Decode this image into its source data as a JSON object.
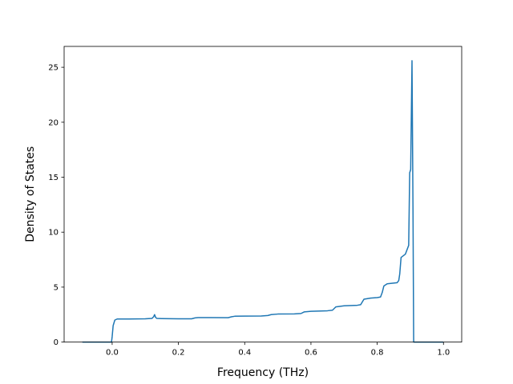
{
  "chart_data": {
    "type": "line",
    "title": "",
    "xlabel": "Frequency (THz)",
    "ylabel": "Density of States",
    "xlim": [
      -0.145,
      1.055
    ],
    "ylim": [
      0,
      26.9
    ],
    "xticks": [
      0.0,
      0.2,
      0.4,
      0.6,
      0.8,
      1.0
    ],
    "xtick_labels": [
      "0.0",
      "0.2",
      "0.4",
      "0.6",
      "0.8",
      "1.0"
    ],
    "yticks": [
      0,
      5,
      10,
      15,
      20,
      25
    ],
    "ytick_labels": [
      "0",
      "5",
      "10",
      "15",
      "20",
      "25"
    ],
    "grid": false,
    "legend": "none",
    "series": [
      {
        "color": "#1f77b4",
        "x": [
          -0.09,
          -0.002,
          0.0,
          0.003,
          0.008,
          0.015,
          0.05,
          0.1,
          0.12,
          0.125,
          0.128,
          0.131,
          0.135,
          0.15,
          0.2,
          0.24,
          0.25,
          0.26,
          0.3,
          0.35,
          0.36,
          0.37,
          0.4,
          0.45,
          0.47,
          0.48,
          0.5,
          0.55,
          0.57,
          0.58,
          0.6,
          0.65,
          0.665,
          0.675,
          0.7,
          0.74,
          0.75,
          0.76,
          0.78,
          0.8,
          0.81,
          0.815,
          0.82,
          0.83,
          0.86,
          0.865,
          0.868,
          0.872,
          0.885,
          0.895,
          0.898,
          0.901,
          0.905,
          0.908,
          0.91,
          0.912,
          0.914,
          0.916,
          0.93,
          1.0
        ],
        "y": [
          0,
          0,
          0.5,
          1.5,
          2.0,
          2.1,
          2.1,
          2.12,
          2.15,
          2.3,
          2.5,
          2.25,
          2.15,
          2.14,
          2.12,
          2.12,
          2.2,
          2.23,
          2.23,
          2.22,
          2.3,
          2.35,
          2.36,
          2.37,
          2.42,
          2.5,
          2.55,
          2.56,
          2.6,
          2.75,
          2.8,
          2.85,
          2.9,
          3.2,
          3.3,
          3.35,
          3.4,
          3.9,
          4.0,
          4.05,
          4.1,
          4.5,
          5.1,
          5.3,
          5.4,
          5.6,
          6.2,
          7.7,
          8.0,
          8.8,
          15.4,
          15.7,
          25.6,
          12.0,
          0,
          0,
          0,
          0,
          0,
          0
        ]
      }
    ]
  }
}
